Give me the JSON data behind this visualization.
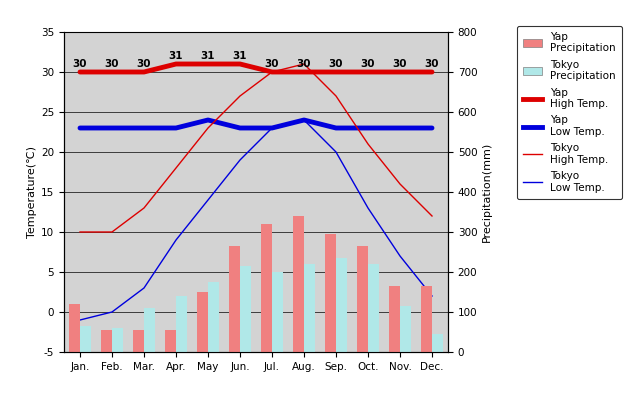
{
  "months": [
    "Jan.",
    "Feb.",
    "Mar.",
    "Apr.",
    "May",
    "Jun.",
    "Jul.",
    "Aug.",
    "Sep.",
    "Oct.",
    "Nov.",
    "Dec."
  ],
  "yap_high_temp": [
    30,
    30,
    30,
    31,
    31,
    31,
    30,
    30,
    30,
    30,
    30,
    30
  ],
  "yap_low_temp": [
    23,
    23,
    23,
    23,
    24,
    23,
    23,
    24,
    23,
    23,
    23,
    23
  ],
  "tokyo_high_temp": [
    10,
    10,
    13,
    18,
    23,
    27,
    30,
    31,
    27,
    21,
    16,
    12
  ],
  "tokyo_low_temp": [
    -1,
    0,
    3,
    9,
    14,
    19,
    23,
    24,
    20,
    13,
    7,
    2
  ],
  "yap_precip": [
    120,
    55,
    55,
    55,
    150,
    265,
    320,
    340,
    295,
    265,
    165,
    165
  ],
  "tokyo_precip": [
    65,
    60,
    110,
    140,
    175,
    215,
    200,
    220,
    235,
    220,
    115,
    45
  ],
  "yap_high_labels": [
    "30",
    "30",
    "30",
    "31",
    "31",
    "31",
    "30",
    "30",
    "30",
    "30",
    "30",
    "30"
  ],
  "title_left": "Temperature(℃)",
  "title_right": "Precipitation(mm)",
  "ylim_temp": [
    -5,
    35
  ],
  "ylim_precip": [
    0,
    800
  ],
  "temp_ticks": [
    -5,
    0,
    5,
    10,
    15,
    20,
    25,
    30,
    35
  ],
  "precip_ticks": [
    0,
    100,
    200,
    300,
    400,
    500,
    600,
    700,
    800
  ],
  "bg_color": "#d3d3d3",
  "yap_precip_color": "#f08080",
  "tokyo_precip_color": "#b0e8e8",
  "yap_high_color": "#dd0000",
  "yap_low_color": "#0000dd",
  "tokyo_high_color": "#dd0000",
  "tokyo_low_color": "#0000dd",
  "legend_labels": [
    "Yap\nPrecipitation",
    "Tokyo\nPrecipitation",
    "Yap\nHigh Temp.",
    "Yap\nLow Temp.",
    "Tokyo\nHigh Temp.",
    "Tokyo\nLow Temp."
  ]
}
